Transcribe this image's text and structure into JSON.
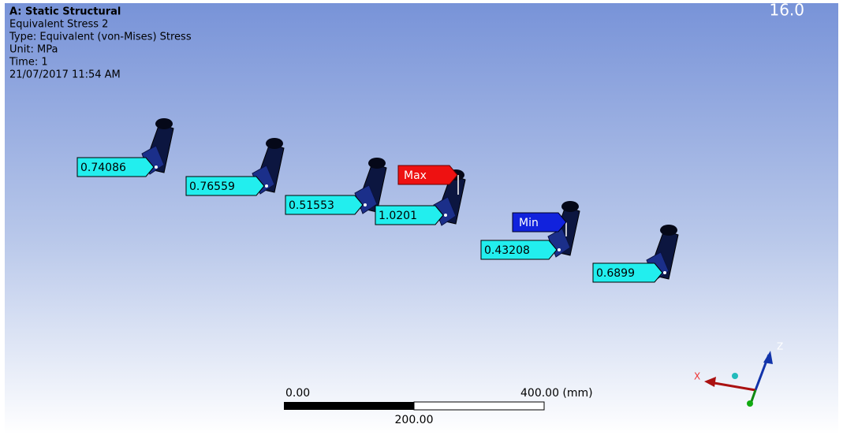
{
  "header": {
    "title": "A: Static Structural",
    "lines": [
      "Equivalent Stress 2",
      "Type: Equivalent (von-Mises) Stress",
      "Unit: MPa",
      "Time: 1",
      "21/07/2017 11:54 AM"
    ]
  },
  "version": "16.0",
  "probes": [
    "0.74086",
    "0.76559",
    "0.51553",
    "1.0201",
    "0.43208",
    "0.6899"
  ],
  "max_tag": "Max",
  "min_tag": "Min",
  "scale_bar": {
    "start": "0.00",
    "end": "400.00 (mm)",
    "middle": "200.00"
  },
  "triad": {
    "x": "X",
    "z": "Z"
  }
}
